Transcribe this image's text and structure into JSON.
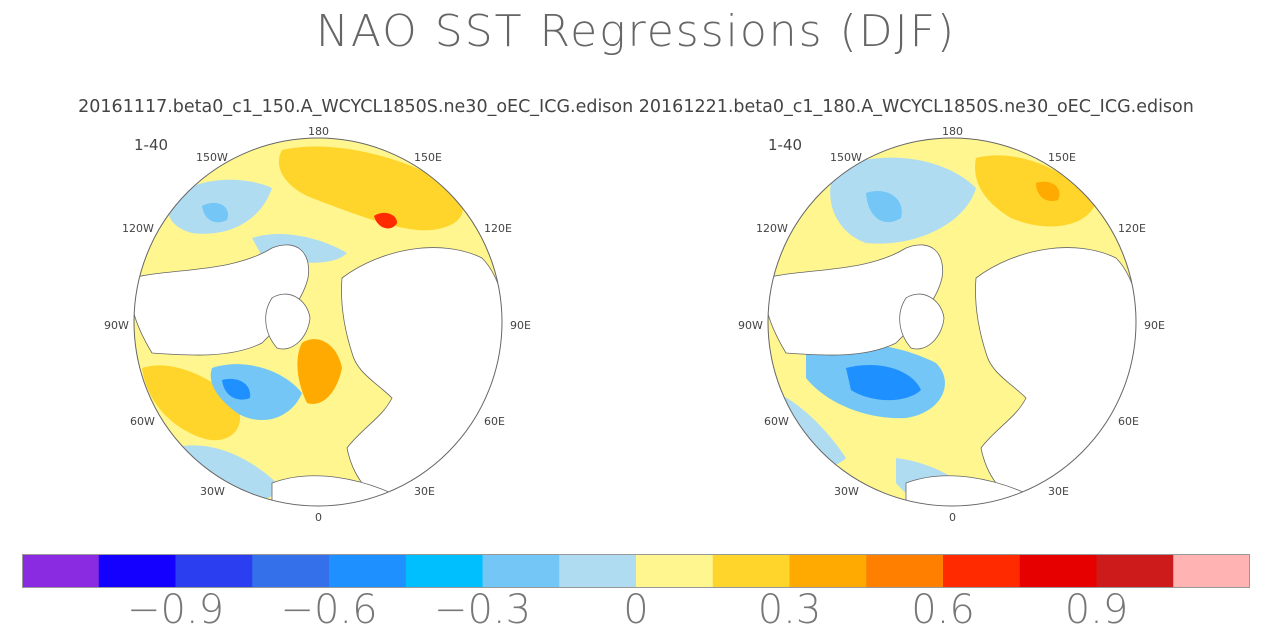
{
  "chart_data": {
    "type": "heatmap",
    "title": "NAO SST Regressions (DJF)",
    "subtitle": "20161117.beta0_c1_150.A_WCYCL1850S.ne30_oEC_ICG.edison 20161221.beta0_c1_180.A_WCYCL1850S.ne30_oEC_ICG.edison",
    "projection": "polar-stereographic-north",
    "panels": [
      {
        "name": "20161117.beta0_c1_150.A_WCYCL1850S.ne30_oEC_ICG.edison",
        "period": "1-40",
        "longitude_labels": [
          "180",
          "150E",
          "120E",
          "90E",
          "60E",
          "30E",
          "0",
          "30W",
          "60W",
          "90W",
          "120W",
          "150W"
        ]
      },
      {
        "name": "20161221.beta0_c1_180.A_WCYCL1850S.ne30_oEC_ICG.edison",
        "period": "1-40",
        "longitude_labels": [
          "180",
          "150E",
          "120E",
          "90E",
          "60E",
          "30E",
          "0",
          "30W",
          "60W",
          "90W",
          "120W",
          "150W"
        ]
      }
    ],
    "colorbar": {
      "levels": [
        -1.05,
        -0.9,
        -0.75,
        -0.6,
        -0.45,
        -0.3,
        -0.15,
        0,
        0.15,
        0.3,
        0.45,
        0.6,
        0.75,
        0.9,
        1.05
      ],
      "colors": [
        "#8a2be2",
        "#1400ff",
        "#2b3ff0",
        "#3370ea",
        "#1e90ff",
        "#00bfff",
        "#73c6f5",
        "#b0dcf2",
        "#fff68f",
        "#ffd52b",
        "#ffaa00",
        "#ff7f00",
        "#ff2a00",
        "#e60000",
        "#cd1a1a",
        "#ffb3b3"
      ],
      "tick_labels": [
        "−0.9",
        "−0.6",
        "−0.3",
        "0",
        "0.3",
        "0.6",
        "0.9"
      ],
      "tick_values": [
        -0.9,
        -0.6,
        -0.3,
        0,
        0.3,
        0.6,
        0.9
      ]
    }
  }
}
